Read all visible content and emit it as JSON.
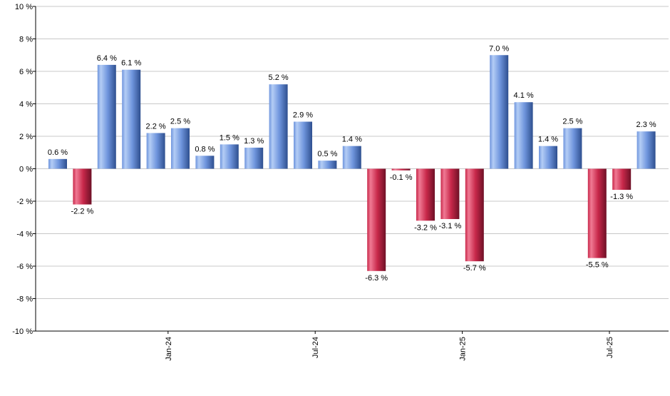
{
  "chart_data": {
    "type": "bar",
    "title": "",
    "xlabel": "",
    "ylabel": "",
    "ylim": [
      -10,
      10
    ],
    "ytick_step": 2,
    "y_tick_suffix": " %",
    "grid": true,
    "legend": "none",
    "value_label_suffix": " %",
    "values": [
      0.6,
      -2.2,
      6.4,
      6.1,
      2.2,
      2.5,
      0.8,
      1.5,
      1.3,
      5.2,
      2.9,
      0.5,
      1.4,
      -6.3,
      -0.1,
      -3.2,
      -3.1,
      -5.7,
      7.0,
      4.1,
      1.4,
      2.5,
      -5.5,
      -1.3,
      2.3
    ],
    "x_tick_labels": [
      {
        "label": "Jan-24",
        "after_bar_index": 4
      },
      {
        "label": "Jul-24",
        "after_bar_index": 10
      },
      {
        "label": "Jan-25",
        "after_bar_index": 16
      },
      {
        "label": "Jul-25",
        "after_bar_index": 22
      }
    ],
    "colors": {
      "positive_light": "#b4cdf5",
      "positive_mid": "#6f95dd",
      "positive_dark": "#2e4f8f",
      "negative_light": "#f07a94",
      "negative_mid": "#c8284a",
      "negative_dark": "#6e1026",
      "grid": "#c8c8c8",
      "axis": "#000000",
      "text": "#000000"
    }
  }
}
